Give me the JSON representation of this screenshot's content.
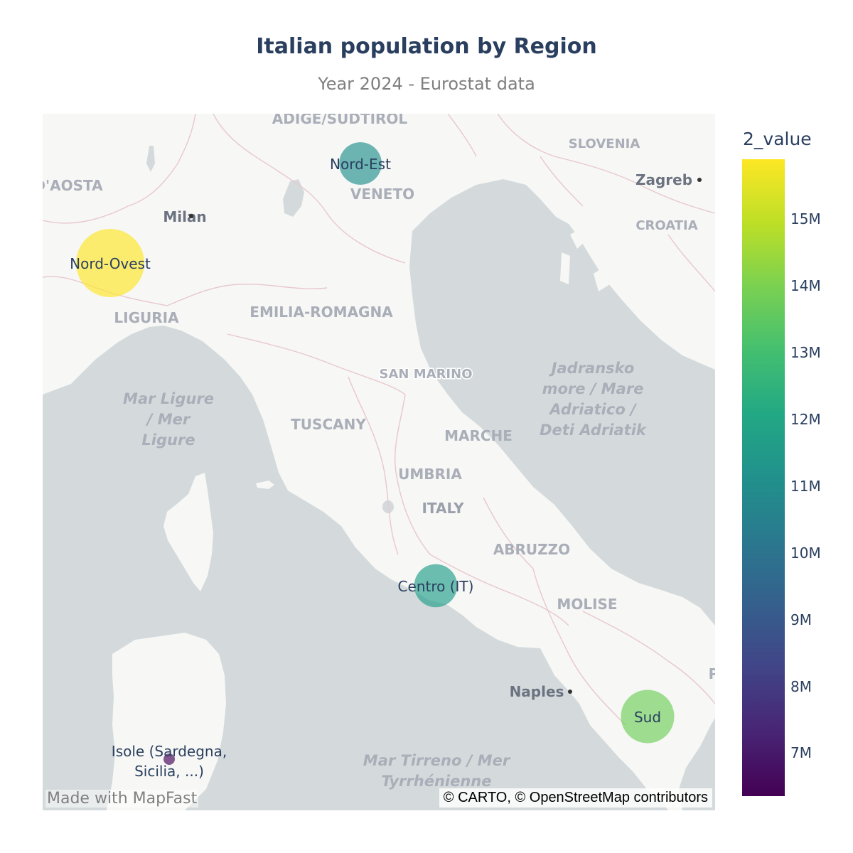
{
  "title": "Italian population by Region",
  "subtitle": "Year 2024 - Eurostat data",
  "watermark": "Made with MapFast",
  "attribution": "© CARTO, © OpenStreetMap contributors",
  "colorbar": {
    "title": "2_value",
    "ticks": [
      "15M",
      "14M",
      "13M",
      "12M",
      "11M",
      "10M",
      "9M",
      "8M",
      "7M"
    ],
    "colorscale": "viridis",
    "range": [
      6.4,
      15.9
    ]
  },
  "basemap_labels": {
    "countries": [
      "SLOVENIA",
      "CROATIA",
      "ITALY",
      "SAN MARINO"
    ],
    "regions": [
      "ADIGE/SUDTIROL",
      "D'AOSTA",
      "VENETO",
      "LIGURIA",
      "EMILIA-ROMAGNA",
      "TUSCANY",
      "MARCHE",
      "UMBRIA",
      "ABRUZZO",
      "MOLISE"
    ],
    "cities": [
      "Milan",
      "Zagreb",
      "Naples"
    ],
    "seas": [
      [
        "Mar Ligure",
        "/ Mer",
        "Ligure"
      ],
      [
        "Jadransko",
        "more / Mare",
        "Adriatico /",
        "Deti Adriatik"
      ],
      [
        "Mar Tirreno / Mer",
        "Tyrrhénienne"
      ]
    ],
    "edge_fragment": "P"
  },
  "markers": [
    {
      "name": "Nord-Ovest",
      "value": 15.9,
      "color": "#fde725"
    },
    {
      "name": "Nord-Est",
      "value": 11.6,
      "color": "#21918c"
    },
    {
      "name": "Centro (IT)",
      "value": 11.7,
      "color": "#1f9e89"
    },
    {
      "name": "Sud",
      "value": 13.4,
      "color": "#6ece58"
    },
    {
      "name": "Isole (Sardegna, Sicilia, ...)",
      "name_lines": [
        "Isole (Sardegna,",
        "Sicilia, ...)"
      ],
      "value": 6.4,
      "color": "#440154"
    }
  ]
}
